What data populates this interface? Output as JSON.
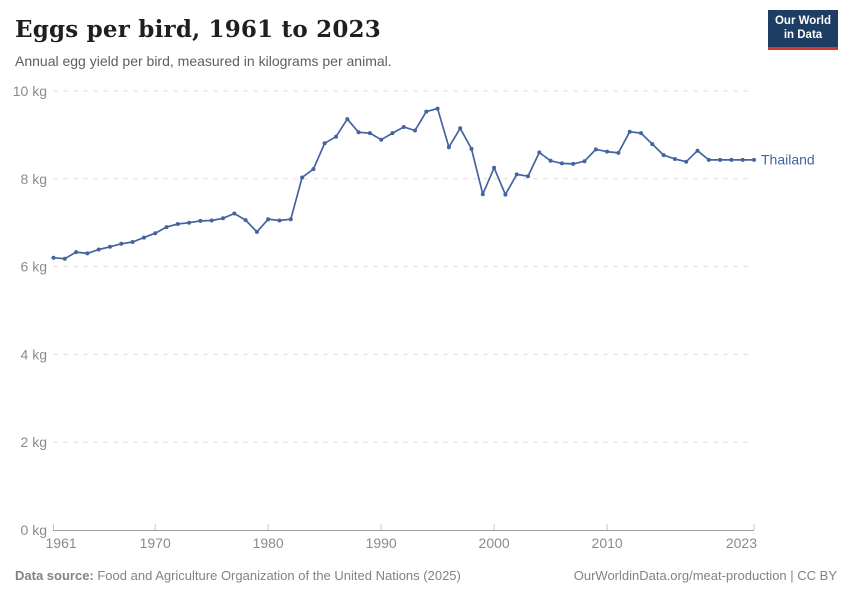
{
  "header": {
    "title": "Eggs per bird, 1961 to 2023",
    "subtitle": "Annual egg yield per bird, measured in kilograms per animal.",
    "logo": {
      "line1": "Our World",
      "line2": "in Data"
    }
  },
  "footer": {
    "source_label": "Data source:",
    "source_text": " Food and Agriculture Organization of the United Nations (2025)",
    "link_text": "OurWorldinData.org/meat-production",
    "separator": " | ",
    "license_text": "CC BY"
  },
  "colors": {
    "line": "#44639f",
    "entity_label": "#44639f",
    "grid": "#dadada",
    "axis": "#9e9e9e",
    "tick": "#c6c6c6",
    "axis_label": "#8b8b8b",
    "logo_bg": "#1d3d63",
    "logo_stripe": "#d7382e"
  },
  "chart_data": {
    "type": "line",
    "title": "Eggs per bird, 1961 to 2023",
    "subtitle": "Annual egg yield per bird, measured in kilograms per animal.",
    "xlabel": "",
    "ylabel": "kg",
    "unit": "kg",
    "grid": "horizontal-dashed",
    "legend": "end-of-line-label",
    "ylim": [
      0,
      10
    ],
    "xlim": [
      1961,
      2023
    ],
    "y_ticks": [
      {
        "v": 0,
        "label": "0 kg"
      },
      {
        "v": 2,
        "label": "2 kg"
      },
      {
        "v": 4,
        "label": "4 kg"
      },
      {
        "v": 6,
        "label": "6 kg"
      },
      {
        "v": 8,
        "label": "8 kg"
      },
      {
        "v": 10,
        "label": "10 kg"
      }
    ],
    "x_ticks": [
      {
        "v": 1961,
        "label": "1961"
      },
      {
        "v": 1970,
        "label": "1970"
      },
      {
        "v": 1980,
        "label": "1980"
      },
      {
        "v": 1990,
        "label": "1990"
      },
      {
        "v": 2000,
        "label": "2000"
      },
      {
        "v": 2010,
        "label": "2010"
      },
      {
        "v": 2023,
        "label": "2023"
      }
    ],
    "x": [
      1961,
      1962,
      1963,
      1964,
      1965,
      1966,
      1967,
      1968,
      1969,
      1970,
      1971,
      1972,
      1973,
      1974,
      1975,
      1976,
      1977,
      1978,
      1979,
      1980,
      1981,
      1982,
      1983,
      1984,
      1985,
      1986,
      1987,
      1988,
      1989,
      1990,
      1991,
      1992,
      1993,
      1994,
      1995,
      1996,
      1997,
      1998,
      1999,
      2000,
      2001,
      2002,
      2003,
      2004,
      2005,
      2006,
      2007,
      2008,
      2009,
      2010,
      2011,
      2012,
      2013,
      2014,
      2015,
      2016,
      2017,
      2018,
      2019,
      2020,
      2021,
      2022,
      2023
    ],
    "series": [
      {
        "name": "Thailand",
        "values": [
          6.2,
          6.18,
          6.33,
          6.3,
          6.39,
          6.45,
          6.52,
          6.56,
          6.66,
          6.76,
          6.9,
          6.97,
          7.0,
          7.04,
          7.05,
          7.1,
          7.21,
          7.06,
          6.79,
          7.08,
          7.05,
          7.08,
          8.03,
          8.22,
          8.81,
          8.96,
          9.36,
          9.06,
          9.04,
          8.89,
          9.04,
          9.18,
          9.1,
          9.53,
          9.6,
          8.72,
          9.15,
          8.68,
          7.65,
          8.25,
          7.64,
          8.1,
          8.06,
          8.6,
          8.41,
          8.35,
          8.34,
          8.4,
          8.67,
          8.62,
          8.59,
          9.07,
          9.04,
          8.79,
          8.54,
          8.45,
          8.39,
          8.64,
          8.43,
          8.43,
          8.43,
          8.43,
          8.43
        ]
      }
    ]
  }
}
